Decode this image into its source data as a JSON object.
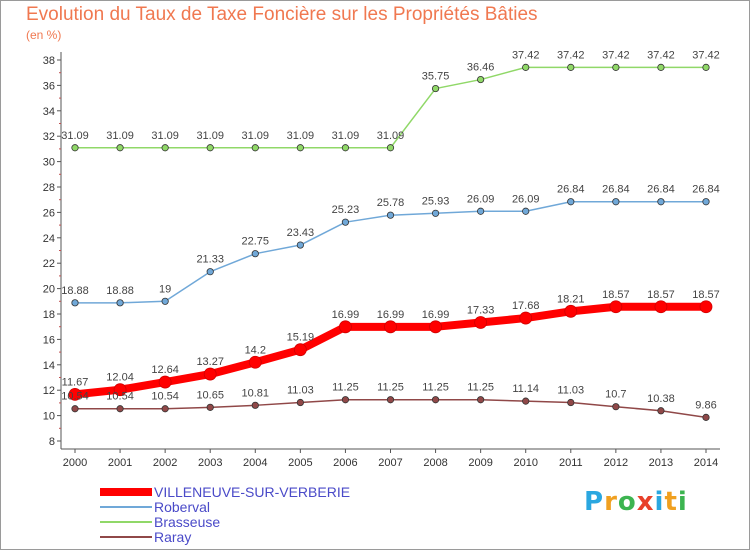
{
  "chart_data": {
    "type": "line",
    "title": "Evolution du Taux de Taxe Foncière sur les Propriétés Bâties",
    "subtitle": "(en %)",
    "x": [
      "2000",
      "2001",
      "2002",
      "2003",
      "2004",
      "2005",
      "2006",
      "2007",
      "2008",
      "2009",
      "2010",
      "2011",
      "2012",
      "2013",
      "2014"
    ],
    "ylim": [
      8,
      38
    ],
    "yticks": [
      8,
      10,
      12,
      14,
      16,
      18,
      20,
      22,
      24,
      26,
      28,
      30,
      32,
      34,
      36,
      38
    ],
    "grid": false,
    "legend_position": "bottom-left",
    "series": [
      {
        "name": "VILLENEUVE-SUR-VERBERIE",
        "color": "#ff0000",
        "width": 8,
        "values": [
          11.67,
          12.04,
          12.64,
          13.27,
          14.2,
          15.19,
          16.99,
          16.99,
          16.99,
          17.33,
          17.68,
          18.21,
          18.57,
          18.57,
          18.57
        ],
        "labels": [
          "11.67",
          "12.04",
          "12.64",
          "13.27",
          "14.2",
          "15.19",
          "16.99",
          "16.99",
          "16.99",
          "17.33",
          "17.68",
          "18.21",
          "18.57",
          "18.57",
          "18.57"
        ]
      },
      {
        "name": "Roberval",
        "color": "#70a8d8",
        "width": 1.5,
        "values": [
          18.88,
          18.88,
          19,
          21.33,
          22.75,
          23.43,
          25.23,
          25.78,
          25.93,
          26.09,
          26.09,
          26.84,
          26.84,
          26.84,
          26.84
        ],
        "labels": [
          "18.88",
          "18.88",
          "19",
          "21.33",
          "22.75",
          "23.43",
          "25.23",
          "25.78",
          "25.93",
          "26.09",
          "26.09",
          "26.84",
          "26.84",
          "26.84",
          "26.84"
        ]
      },
      {
        "name": "Brasseuse",
        "color": "#90d868",
        "width": 1.5,
        "values": [
          31.09,
          31.09,
          31.09,
          31.09,
          31.09,
          31.09,
          31.09,
          31.09,
          35.75,
          36.46,
          37.42,
          37.42,
          37.42,
          37.42,
          37.42
        ],
        "labels": [
          "31.09",
          "31.09",
          "31.09",
          "31.09",
          "31.09",
          "31.09",
          "31.09",
          "31.09",
          "35.75",
          "36.46",
          "37.42",
          "37.42",
          "37.42",
          "37.42",
          "37.42"
        ]
      },
      {
        "name": "Raray",
        "color": "#904848",
        "width": 1.5,
        "values": [
          10.54,
          10.54,
          10.54,
          10.65,
          10.81,
          11.03,
          11.25,
          11.25,
          11.25,
          11.25,
          11.14,
          11.03,
          10.7,
          10.38,
          9.86
        ],
        "labels": [
          "10.54",
          "10.54",
          "10.54",
          "10.65",
          "10.81",
          "11.03",
          "11.25",
          "11.25",
          "11.25",
          "11.25",
          "11.14",
          "11.03",
          "10.7",
          "10.38",
          "9.86"
        ]
      }
    ]
  },
  "logo": {
    "letters": [
      {
        "ch": "P",
        "color": "#2aa7e0"
      },
      {
        "ch": "r",
        "color": "#f0a020"
      },
      {
        "ch": "o",
        "color": "#3cb450"
      },
      {
        "ch": "x",
        "color": "#e8402a"
      },
      {
        "ch": "i",
        "color": "#2aa7e0"
      },
      {
        "ch": "t",
        "color": "#f0a020"
      },
      {
        "ch": "i",
        "color": "#3cb450"
      }
    ]
  }
}
